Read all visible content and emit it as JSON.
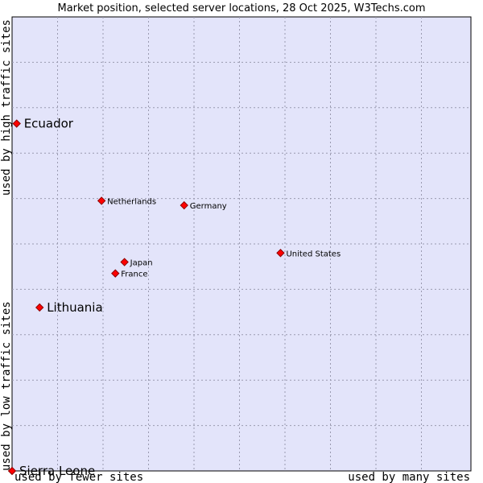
{
  "chart_data": {
    "type": "scatter",
    "title": "Market position, selected server locations, 28 Oct 2025, W3Techs.com",
    "xlabel_left": "used by fewer sites",
    "xlabel_right": "used by many sites",
    "ylabel_bottom": "used by low traffic sites",
    "ylabel_top": "used by high traffic sites",
    "xlim": [
      0,
      100
    ],
    "ylim": [
      0,
      100
    ],
    "grid": true,
    "marker_color": "#ff0000",
    "background_color": "#e3e4fa",
    "points": [
      {
        "label": "Ecuador",
        "x": 1.0,
        "y": 76.5,
        "highlight": true
      },
      {
        "label": "Netherlands",
        "x": 19.5,
        "y": 59.5,
        "highlight": false
      },
      {
        "label": "Germany",
        "x": 37.5,
        "y": 58.5,
        "highlight": false
      },
      {
        "label": "United States",
        "x": 58.5,
        "y": 48.0,
        "highlight": false
      },
      {
        "label": "Japan",
        "x": 24.5,
        "y": 46.0,
        "highlight": false
      },
      {
        "label": "France",
        "x": 22.5,
        "y": 43.5,
        "highlight": false
      },
      {
        "label": "Lithuania",
        "x": 6.0,
        "y": 36.0,
        "highlight": true
      },
      {
        "label": "Sierra Leone",
        "x": 0.0,
        "y": 0.0,
        "highlight": true
      }
    ]
  }
}
